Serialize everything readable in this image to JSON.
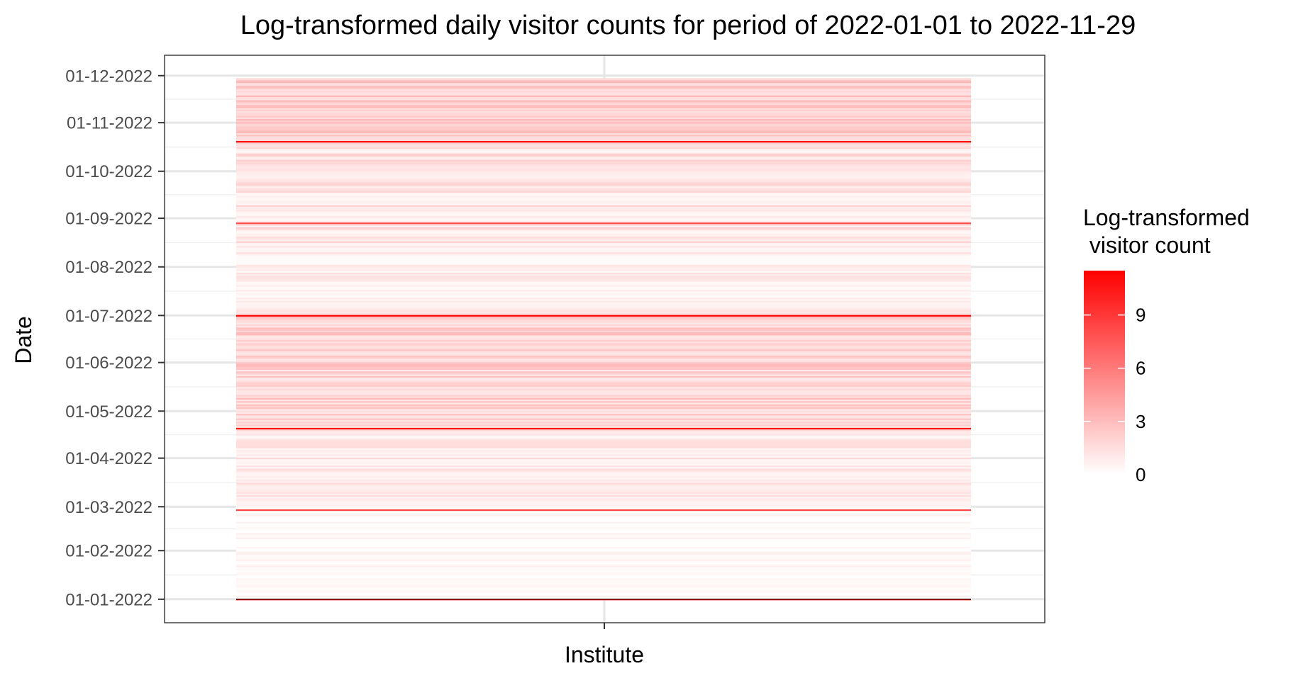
{
  "chart_data": {
    "type": "heatmap",
    "title": "Log-transformed daily visitor counts for period of 2022-01-01 to 2022-11-29",
    "xlabel": "Institute",
    "ylabel": "Date",
    "x_categories": [
      ""
    ],
    "y_axis": {
      "type": "date",
      "tick_labels": [
        "01-01-2022",
        "01-02-2022",
        "01-03-2022",
        "01-04-2022",
        "01-05-2022",
        "01-06-2022",
        "01-07-2022",
        "01-08-2022",
        "01-09-2022",
        "01-10-2022",
        "01-11-2022",
        "01-12-2022"
      ],
      "tick_dates": [
        "2022-01-01",
        "2022-02-01",
        "2022-03-01",
        "2022-04-01",
        "2022-05-01",
        "2022-06-01",
        "2022-07-01",
        "2022-08-01",
        "2022-09-01",
        "2022-10-01",
        "2022-11-01",
        "2022-12-01"
      ],
      "range": [
        "2021-12-17",
        "2022-12-14"
      ]
    },
    "date_range": [
      "2022-01-01",
      "2022-11-29"
    ],
    "grid": true,
    "color_scale": {
      "low": "#ffffff",
      "high": "#ff0000",
      "limits": [
        0,
        11.5
      ]
    },
    "legend": {
      "title_lines": [
        "Log-transformed",
        " visitor count"
      ],
      "ticks": [
        0,
        3,
        6,
        9
      ],
      "tick_labels": [
        "0",
        "3",
        "6",
        "9"
      ],
      "position": "right"
    },
    "value_profile": [
      {
        "from": "2022-01-01",
        "to": "2022-02-28",
        "low": 0.0,
        "high": 0.8
      },
      {
        "from": "2022-03-01",
        "to": "2022-04-15",
        "low": 0.4,
        "high": 1.8
      },
      {
        "from": "2022-04-16",
        "to": "2022-07-05",
        "low": 1.0,
        "high": 3.2
      },
      {
        "from": "2022-07-06",
        "to": "2022-08-10",
        "low": 0.2,
        "high": 1.6
      },
      {
        "from": "2022-08-11",
        "to": "2022-10-21",
        "low": 0.4,
        "high": 2.2
      },
      {
        "from": "2022-10-22",
        "to": "2022-11-29",
        "low": 1.4,
        "high": 3.6
      }
    ],
    "peaks": [
      {
        "date": "2022-01-01",
        "value": 11.5
      },
      {
        "date": "2022-02-27",
        "value": 8.5
      },
      {
        "date": "2022-04-20",
        "value": 11.0
      },
      {
        "date": "2022-07-01",
        "value": 11.5
      },
      {
        "date": "2022-08-29",
        "value": 8.0
      },
      {
        "date": "2022-10-20",
        "value": 11.0
      }
    ]
  }
}
